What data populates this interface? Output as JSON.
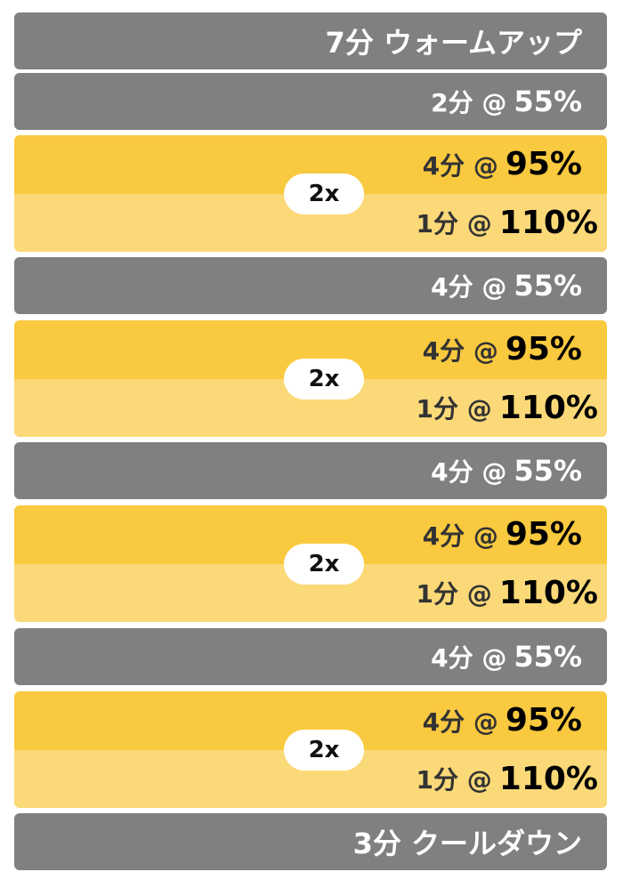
{
  "colors": {
    "rest": "#808080",
    "interval_high": "#f9c93f",
    "interval_max": "#fbd978"
  },
  "steps": [
    {
      "type": "single",
      "text": "7分 ウォームアップ"
    },
    {
      "type": "single",
      "prefix": "2分 @",
      "value": "55%"
    },
    {
      "type": "repeat",
      "repeat": "2x",
      "high": {
        "prefix": "4分 @",
        "value": "95%"
      },
      "max": {
        "prefix": "1分 @",
        "value": "110%"
      }
    },
    {
      "type": "single",
      "prefix": "4分 @",
      "value": "55%"
    },
    {
      "type": "repeat",
      "repeat": "2x",
      "high": {
        "prefix": "4分 @",
        "value": "95%"
      },
      "max": {
        "prefix": "1分 @",
        "value": "110%"
      }
    },
    {
      "type": "single",
      "prefix": "4分 @",
      "value": "55%"
    },
    {
      "type": "repeat",
      "repeat": "2x",
      "high": {
        "prefix": "4分 @",
        "value": "95%"
      },
      "max": {
        "prefix": "1分 @",
        "value": "110%"
      }
    },
    {
      "type": "single",
      "prefix": "4分 @",
      "value": "55%"
    },
    {
      "type": "repeat",
      "repeat": "2x",
      "high": {
        "prefix": "4分 @",
        "value": "95%"
      },
      "max": {
        "prefix": "1分 @",
        "value": "110%"
      }
    },
    {
      "type": "single",
      "text": "3分 クールダウン"
    }
  ]
}
